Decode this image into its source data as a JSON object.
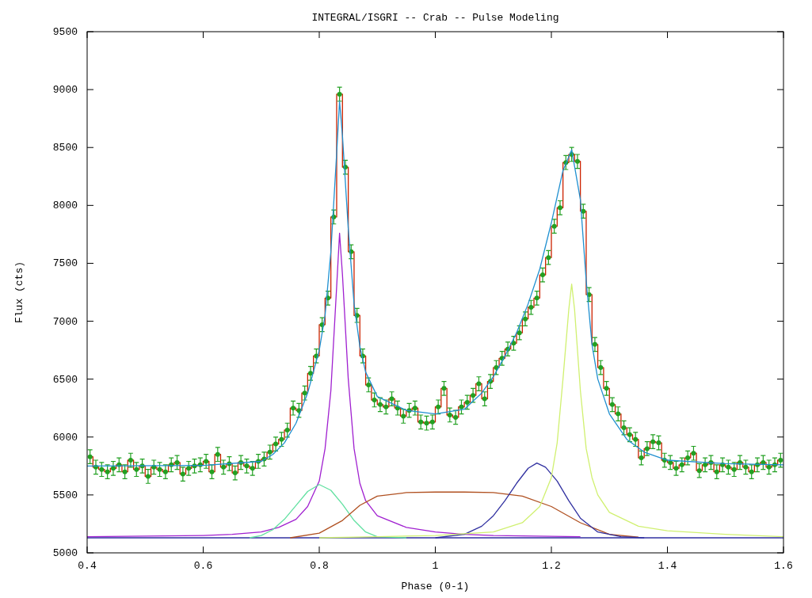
{
  "chart_data": {
    "type": "line",
    "title": "INTEGRAL/ISGRI -- Crab -- Pulse Modeling",
    "xlabel": "Phase (0-1)",
    "ylabel": "Flux (cts)",
    "xlim": [
      0.4,
      1.6
    ],
    "xticks": [
      {
        "value": 0.4,
        "label": "0.4"
      },
      {
        "value": 0.6,
        "label": "0.6"
      },
      {
        "value": 0.8,
        "label": "0.8"
      },
      {
        "value": 1,
        "label": "1"
      },
      {
        "value": 1.2,
        "label": "1.2"
      },
      {
        "value": 1.4,
        "label": "1.4"
      },
      {
        "value": 1.6,
        "label": "1.6"
      }
    ],
    "ylim": [
      5000,
      9500
    ],
    "yticks": [
      5000,
      5500,
      6000,
      6500,
      7000,
      7500,
      8000,
      8500,
      9000,
      9500
    ],
    "grid": false,
    "x": [
      0.405,
      0.415,
      0.425,
      0.435,
      0.445,
      0.455,
      0.465,
      0.475,
      0.485,
      0.495,
      0.505,
      0.515,
      0.525,
      0.535,
      0.545,
      0.555,
      0.565,
      0.575,
      0.585,
      0.595,
      0.605,
      0.615,
      0.625,
      0.635,
      0.645,
      0.655,
      0.665,
      0.675,
      0.685,
      0.695,
      0.705,
      0.715,
      0.725,
      0.735,
      0.745,
      0.755,
      0.765,
      0.775,
      0.785,
      0.795,
      0.805,
      0.815,
      0.825,
      0.835,
      0.845,
      0.855,
      0.865,
      0.875,
      0.885,
      0.895,
      0.905,
      0.915,
      0.925,
      0.935,
      0.945,
      0.955,
      0.965,
      0.975,
      0.985,
      0.995,
      1.005,
      1.015,
      1.025,
      1.035,
      1.045,
      1.055,
      1.065,
      1.075,
      1.085,
      1.095,
      1.105,
      1.115,
      1.125,
      1.135,
      1.145,
      1.155,
      1.165,
      1.175,
      1.185,
      1.195,
      1.205,
      1.215,
      1.225,
      1.235,
      1.245,
      1.255,
      1.265,
      1.275,
      1.285,
      1.295,
      1.305,
      1.315,
      1.325,
      1.335,
      1.345,
      1.355,
      1.365,
      1.375,
      1.385,
      1.395,
      1.405,
      1.415,
      1.425,
      1.435,
      1.445,
      1.455,
      1.465,
      1.475,
      1.485,
      1.495,
      1.505,
      1.515,
      1.525,
      1.535,
      1.545,
      1.555,
      1.565,
      1.575,
      1.585,
      1.595
    ],
    "series": [
      {
        "color": "#3030a0",
        "x": [
          0.4,
          1.6
        ],
        "values": [
          5130,
          5130
        ]
      },
      {
        "type": "line",
        "color": "#a020d0",
        "x": [
          0.4,
          0.6,
          0.65,
          0.7,
          0.73,
          0.76,
          0.78,
          0.8,
          0.81,
          0.82,
          0.83,
          0.835,
          0.84,
          0.85,
          0.86,
          0.87,
          0.88,
          0.9,
          0.95,
          1.0,
          1.05,
          1.1,
          1.25
        ],
        "values": [
          5140,
          5150,
          5160,
          5180,
          5220,
          5290,
          5400,
          5620,
          5900,
          6400,
          7300,
          7760,
          7400,
          6500,
          5900,
          5600,
          5450,
          5320,
          5220,
          5180,
          5160,
          5150,
          5140
        ]
      },
      {
        "type": "line",
        "color": "#60e0a0",
        "x": [
          0.68,
          0.7,
          0.72,
          0.74,
          0.76,
          0.78,
          0.8,
          0.82,
          0.84,
          0.86,
          0.88,
          0.9,
          0.95
        ],
        "values": [
          5130,
          5150,
          5200,
          5290,
          5410,
          5530,
          5590,
          5540,
          5420,
          5280,
          5180,
          5140,
          5130
        ]
      },
      {
        "type": "line",
        "color": "#b05020",
        "x": [
          0.75,
          0.8,
          0.84,
          0.87,
          0.9,
          0.95,
          1.0,
          1.05,
          1.1,
          1.15,
          1.2,
          1.25,
          1.3,
          1.35
        ],
        "values": [
          5130,
          5170,
          5280,
          5410,
          5490,
          5520,
          5525,
          5525,
          5520,
          5490,
          5400,
          5260,
          5160,
          5135
        ]
      },
      {
        "type": "line",
        "color": "#3030a0",
        "x": [
          1.0,
          1.05,
          1.08,
          1.1,
          1.12,
          1.14,
          1.16,
          1.175,
          1.19,
          1.21,
          1.23,
          1.25,
          1.28,
          1.32,
          1.36
        ],
        "values": [
          5130,
          5160,
          5230,
          5320,
          5450,
          5600,
          5730,
          5775,
          5740,
          5620,
          5450,
          5300,
          5180,
          5140,
          5130
        ]
      },
      {
        "type": "line",
        "color": "#d0f070",
        "x": [
          0.8,
          0.9,
          1.0,
          1.1,
          1.15,
          1.18,
          1.2,
          1.21,
          1.22,
          1.23,
          1.235,
          1.24,
          1.25,
          1.26,
          1.27,
          1.28,
          1.3,
          1.35,
          1.4,
          1.5,
          1.6
        ],
        "values": [
          5130,
          5140,
          5150,
          5180,
          5260,
          5400,
          5650,
          5950,
          6500,
          7100,
          7320,
          7100,
          6400,
          5900,
          5650,
          5500,
          5350,
          5230,
          5190,
          5160,
          5140
        ]
      },
      {
        "type": "step",
        "color": "#cc2200",
        "values": [
          5830,
          5740,
          5720,
          5700,
          5730,
          5760,
          5700,
          5800,
          5720,
          5750,
          5660,
          5740,
          5720,
          5700,
          5760,
          5780,
          5680,
          5730,
          5750,
          5760,
          5790,
          5700,
          5850,
          5740,
          5770,
          5690,
          5780,
          5750,
          5730,
          5790,
          5810,
          5870,
          5940,
          5980,
          6060,
          6250,
          6230,
          6380,
          6550,
          6700,
          6970,
          7200,
          7900,
          8960,
          8330,
          7600,
          7050,
          6700,
          6450,
          6320,
          6280,
          6260,
          6330,
          6250,
          6180,
          6230,
          6250,
          6130,
          6120,
          6130,
          6260,
          6420,
          6190,
          6170,
          6260,
          6300,
          6360,
          6460,
          6330,
          6480,
          6600,
          6680,
          6760,
          6810,
          6900,
          7020,
          7120,
          7200,
          7400,
          7550,
          7820,
          7980,
          8370,
          8440,
          8380,
          7950,
          7230,
          6800,
          6600,
          6420,
          6280,
          6200,
          6080,
          6020,
          5980,
          5820,
          5900,
          5960,
          5950,
          5800,
          5780,
          5730,
          5760,
          5820,
          5860,
          5710,
          5760,
          5780,
          5700,
          5760,
          5740,
          5720,
          5780,
          5740,
          5700,
          5760,
          5780,
          5740,
          5760,
          5800
        ]
      },
      {
        "type": "scatter",
        "color": "#22a022",
        "marker": "circle",
        "values": [
          5830,
          5740,
          5720,
          5700,
          5730,
          5760,
          5700,
          5800,
          5720,
          5750,
          5660,
          5740,
          5720,
          5700,
          5760,
          5780,
          5680,
          5730,
          5750,
          5760,
          5790,
          5700,
          5850,
          5740,
          5770,
          5690,
          5780,
          5750,
          5730,
          5790,
          5810,
          5870,
          5940,
          5980,
          6060,
          6250,
          6230,
          6380,
          6550,
          6700,
          6970,
          7200,
          7900,
          8960,
          8330,
          7600,
          7050,
          6700,
          6450,
          6320,
          6280,
          6260,
          6330,
          6250,
          6180,
          6230,
          6250,
          6130,
          6120,
          6130,
          6260,
          6420,
          6190,
          6170,
          6260,
          6300,
          6360,
          6460,
          6330,
          6480,
          6600,
          6680,
          6760,
          6810,
          6900,
          7020,
          7120,
          7200,
          7400,
          7550,
          7820,
          7980,
          8370,
          8440,
          8380,
          7950,
          7230,
          6800,
          6600,
          6420,
          6280,
          6200,
          6080,
          6020,
          5980,
          5820,
          5900,
          5960,
          5950,
          5800,
          5780,
          5730,
          5760,
          5820,
          5860,
          5710,
          5760,
          5780,
          5700,
          5760,
          5740,
          5720,
          5780,
          5740,
          5700,
          5760,
          5780,
          5740,
          5760,
          5800
        ],
        "errors": [
          60,
          60,
          60,
          60,
          60,
          60,
          60,
          60,
          60,
          60,
          60,
          60,
          60,
          60,
          60,
          60,
          60,
          60,
          60,
          60,
          60,
          60,
          60,
          60,
          60,
          60,
          60,
          60,
          60,
          60,
          60,
          60,
          60,
          60,
          60,
          60,
          60,
          60,
          60,
          60,
          60,
          60,
          60,
          60,
          60,
          60,
          60,
          60,
          60,
          60,
          60,
          60,
          60,
          60,
          60,
          60,
          60,
          60,
          60,
          60,
          60,
          60,
          60,
          60,
          60,
          60,
          60,
          60,
          60,
          60,
          60,
          60,
          60,
          60,
          60,
          60,
          60,
          60,
          60,
          60,
          60,
          60,
          60,
          60,
          60,
          60,
          60,
          60,
          60,
          60,
          60,
          60,
          60,
          60,
          60,
          60,
          60,
          60,
          60,
          60,
          60,
          60,
          60,
          60,
          60,
          60,
          60,
          60,
          60,
          60,
          60,
          60,
          60,
          60,
          60,
          60,
          60,
          60,
          60,
          60
        ]
      },
      {
        "type": "line",
        "color": "#2090d0",
        "x": [
          0.4,
          0.6,
          0.7,
          0.72,
          0.74,
          0.76,
          0.78,
          0.8,
          0.81,
          0.82,
          0.83,
          0.835,
          0.84,
          0.85,
          0.86,
          0.87,
          0.88,
          0.9,
          0.95,
          1.0,
          1.05,
          1.08,
          1.1,
          1.12,
          1.14,
          1.16,
          1.18,
          1.2,
          1.22,
          1.235,
          1.25,
          1.26,
          1.27,
          1.28,
          1.3,
          1.33,
          1.36,
          1.4,
          1.5,
          1.6
        ],
        "values": [
          5750,
          5755,
          5790,
          5850,
          5950,
          6120,
          6380,
          6750,
          7050,
          7600,
          8450,
          8900,
          8600,
          7800,
          7150,
          6780,
          6560,
          6350,
          6230,
          6200,
          6240,
          6380,
          6520,
          6700,
          6900,
          7150,
          7450,
          7850,
          8300,
          8480,
          8050,
          7350,
          6800,
          6500,
          6200,
          5980,
          5870,
          5800,
          5770,
          5760
        ]
      }
    ]
  }
}
